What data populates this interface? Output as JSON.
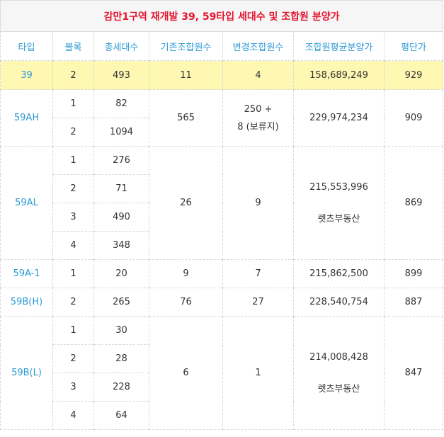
{
  "title": "감만1구역 재개발 39, 59타입 세대수 및 조합원 분양가",
  "headers": [
    "타입",
    "블록",
    "총세대수",
    "기존조합원수",
    "변경조합원수",
    "조합원평균분양가",
    "평단가"
  ],
  "groups": [
    {
      "type": "39",
      "blocks": [
        {
          "block": "2",
          "units": "493"
        }
      ],
      "existing": "11",
      "changed": "4",
      "changed_note": "",
      "price": "158,689,249",
      "price_note": "",
      "per_pyeong": "929"
    },
    {
      "type": "59AH",
      "blocks": [
        {
          "block": "1",
          "units": "82"
        },
        {
          "block": "2",
          "units": "1094"
        }
      ],
      "existing": "565",
      "changed": "250 +",
      "changed_note": "8 (보류지)",
      "price": "229,974,234",
      "price_note": "",
      "per_pyeong": "909"
    },
    {
      "type": "59AL",
      "blocks": [
        {
          "block": "1",
          "units": "276"
        },
        {
          "block": "2",
          "units": "71"
        },
        {
          "block": "3",
          "units": "490"
        },
        {
          "block": "4",
          "units": "348"
        }
      ],
      "existing": "26",
      "changed": "9",
      "changed_note": "",
      "price": "215,553,996",
      "price_note": "렛츠부동산",
      "per_pyeong": "869"
    },
    {
      "type": "59A-1",
      "blocks": [
        {
          "block": "1",
          "units": "20"
        }
      ],
      "existing": "9",
      "changed": "7",
      "changed_note": "",
      "price": "215,862,500",
      "price_note": "",
      "per_pyeong": "899"
    },
    {
      "type": "59B(H)",
      "blocks": [
        {
          "block": "2",
          "units": "265"
        }
      ],
      "existing": "76",
      "changed": "27",
      "changed_note": "",
      "price": "228,540,754",
      "price_note": "",
      "per_pyeong": "887"
    },
    {
      "type": "59B(L)",
      "blocks": [
        {
          "block": "1",
          "units": "30"
        },
        {
          "block": "2",
          "units": "28"
        },
        {
          "block": "3",
          "units": "228"
        },
        {
          "block": "4",
          "units": "64"
        }
      ],
      "existing": "6",
      "changed": "1",
      "changed_note": "",
      "price": "214,008,428",
      "price_note": "렛츠부동산",
      "per_pyeong": "847"
    }
  ]
}
